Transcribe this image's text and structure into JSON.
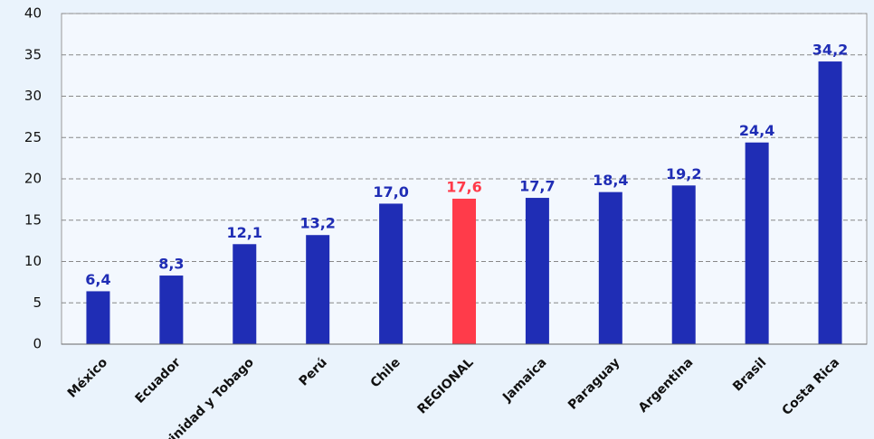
{
  "chart_data": {
    "type": "bar",
    "categories": [
      "México",
      "Ecuador",
      "Trinidad y Tobago",
      "Perú",
      "Chile",
      "REGIONAL",
      "Jamaica",
      "Paraguay",
      "Argentina",
      "Brasil",
      "Costa Rica"
    ],
    "values": [
      6.4,
      8.3,
      12.1,
      13.2,
      17.0,
      17.6,
      17.7,
      18.4,
      19.2,
      24.4,
      34.2
    ],
    "value_labels": [
      "6,4",
      "8,3",
      "12,1",
      "13,2",
      "17,0",
      "17,6",
      "17,7",
      "18,4",
      "19,2",
      "24,4",
      "34,2"
    ],
    "colors": [
      "#1f2db5",
      "#1f2db5",
      "#1f2db5",
      "#1f2db5",
      "#1f2db5",
      "#ff3b4a",
      "#1f2db5",
      "#1f2db5",
      "#1f2db5",
      "#1f2db5",
      "#1f2db5"
    ],
    "ylim": [
      0,
      40
    ],
    "yticks": [
      0,
      5,
      10,
      15,
      20,
      25,
      30,
      35,
      40
    ],
    "grid": true
  }
}
